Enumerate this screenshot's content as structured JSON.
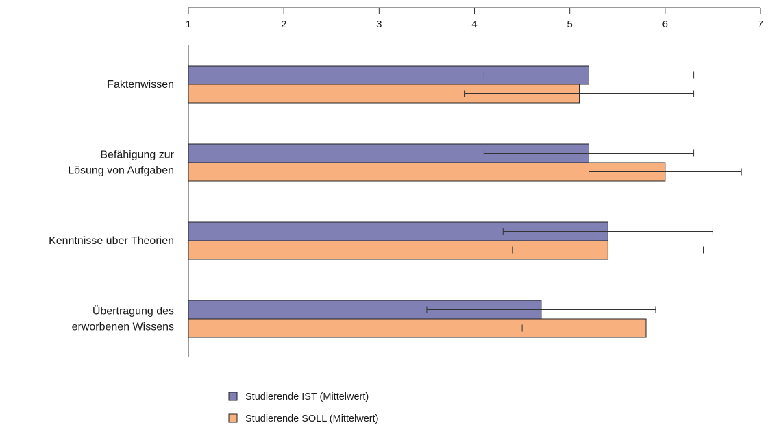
{
  "chart_data": {
    "type": "bar",
    "orientation": "horizontal",
    "title": "",
    "xlabel": "",
    "ylabel": "",
    "xlim": [
      1,
      7
    ],
    "x_ticks": [
      1,
      2,
      3,
      4,
      5,
      6,
      7
    ],
    "x_axis_position": "top",
    "grid": false,
    "legend_position": "bottom",
    "categories": [
      [
        "Faktenwissen"
      ],
      [
        "Befähigung zur",
        "Lösung von Aufgaben"
      ],
      [
        "Kenntnisse über Theorien"
      ],
      [
        "Übertragung des",
        "erworbenen Wissens"
      ]
    ],
    "series": [
      {
        "name": "Studierende IST (Mittelwert)",
        "color": "#8080b4",
        "values": [
          5.2,
          5.2,
          5.4,
          4.7
        ],
        "error_low": [
          4.1,
          4.1,
          4.3,
          3.5
        ],
        "error_high": [
          6.3,
          6.3,
          6.5,
          5.9
        ]
      },
      {
        "name": "Studierende SOLL (Mittelwert)",
        "color": "#f7b07e",
        "values": [
          5.1,
          6.0,
          5.4,
          5.8
        ],
        "error_low": [
          3.9,
          5.2,
          4.4,
          4.5
        ],
        "error_high": [
          6.3,
          6.8,
          6.4,
          7.1
        ]
      }
    ]
  }
}
